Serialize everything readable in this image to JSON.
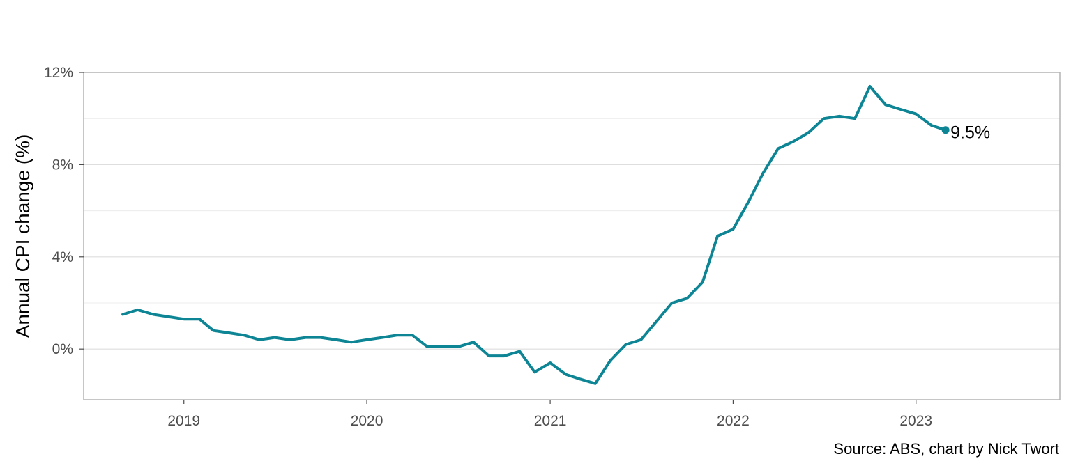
{
  "chart_data": {
    "type": "line",
    "title": "",
    "xlabel": "",
    "ylabel": "Annual CPI change (%)",
    "caption": "Source: ABS, chart by Nick Twort",
    "line_color": "#0E8595",
    "grid": true,
    "xlim": [
      "2018-06-15",
      "2023-10-15"
    ],
    "ylim": [
      -2.2,
      12.0
    ],
    "y_ticks": [
      0,
      4,
      8,
      12
    ],
    "y_tick_labels": [
      "0%",
      "4%",
      "8%",
      "12%"
    ],
    "x_ticks": [
      "2019-01-01",
      "2020-01-01",
      "2021-01-01",
      "2022-01-01",
      "2023-01-01"
    ],
    "x_tick_labels": [
      "2019",
      "2020",
      "2021",
      "2022",
      "2023"
    ],
    "end_label": "9.5%",
    "series": [
      {
        "x": [
          "2018-09",
          "2018-10",
          "2018-11",
          "2018-12",
          "2019-01",
          "2019-02",
          "2019-03",
          "2019-04",
          "2019-05",
          "2019-06",
          "2019-07",
          "2019-08",
          "2019-09",
          "2019-10",
          "2019-11",
          "2019-12",
          "2020-01",
          "2020-02",
          "2020-03",
          "2020-04",
          "2020-05",
          "2020-06",
          "2020-07",
          "2020-08",
          "2020-09",
          "2020-10",
          "2020-11",
          "2020-12",
          "2021-01",
          "2021-02",
          "2021-03",
          "2021-04",
          "2021-05",
          "2021-06",
          "2021-07",
          "2021-08",
          "2021-09",
          "2021-10",
          "2021-11",
          "2021-12",
          "2022-01",
          "2022-02",
          "2022-03",
          "2022-04",
          "2022-05",
          "2022-06",
          "2022-07",
          "2022-08",
          "2022-09",
          "2022-10",
          "2022-11",
          "2022-12",
          "2023-01",
          "2023-02",
          "2023-03"
        ],
        "values": [
          1.5,
          1.7,
          1.5,
          1.4,
          1.3,
          1.3,
          0.8,
          0.7,
          0.6,
          0.4,
          0.5,
          0.4,
          0.5,
          0.5,
          0.4,
          0.3,
          0.4,
          0.5,
          0.6,
          0.6,
          0.1,
          0.1,
          0.1,
          0.3,
          -0.3,
          -0.3,
          -0.1,
          -1.0,
          -0.6,
          -1.1,
          -1.3,
          -1.5,
          -0.5,
          0.2,
          0.4,
          1.2,
          2.0,
          2.2,
          2.9,
          4.9,
          5.2,
          6.4,
          7.6,
          8.7,
          9.0,
          9.4,
          10.0,
          10.1,
          10.0,
          11.4,
          10.6,
          10.4,
          10.2,
          9.7,
          9.5
        ]
      }
    ]
  }
}
